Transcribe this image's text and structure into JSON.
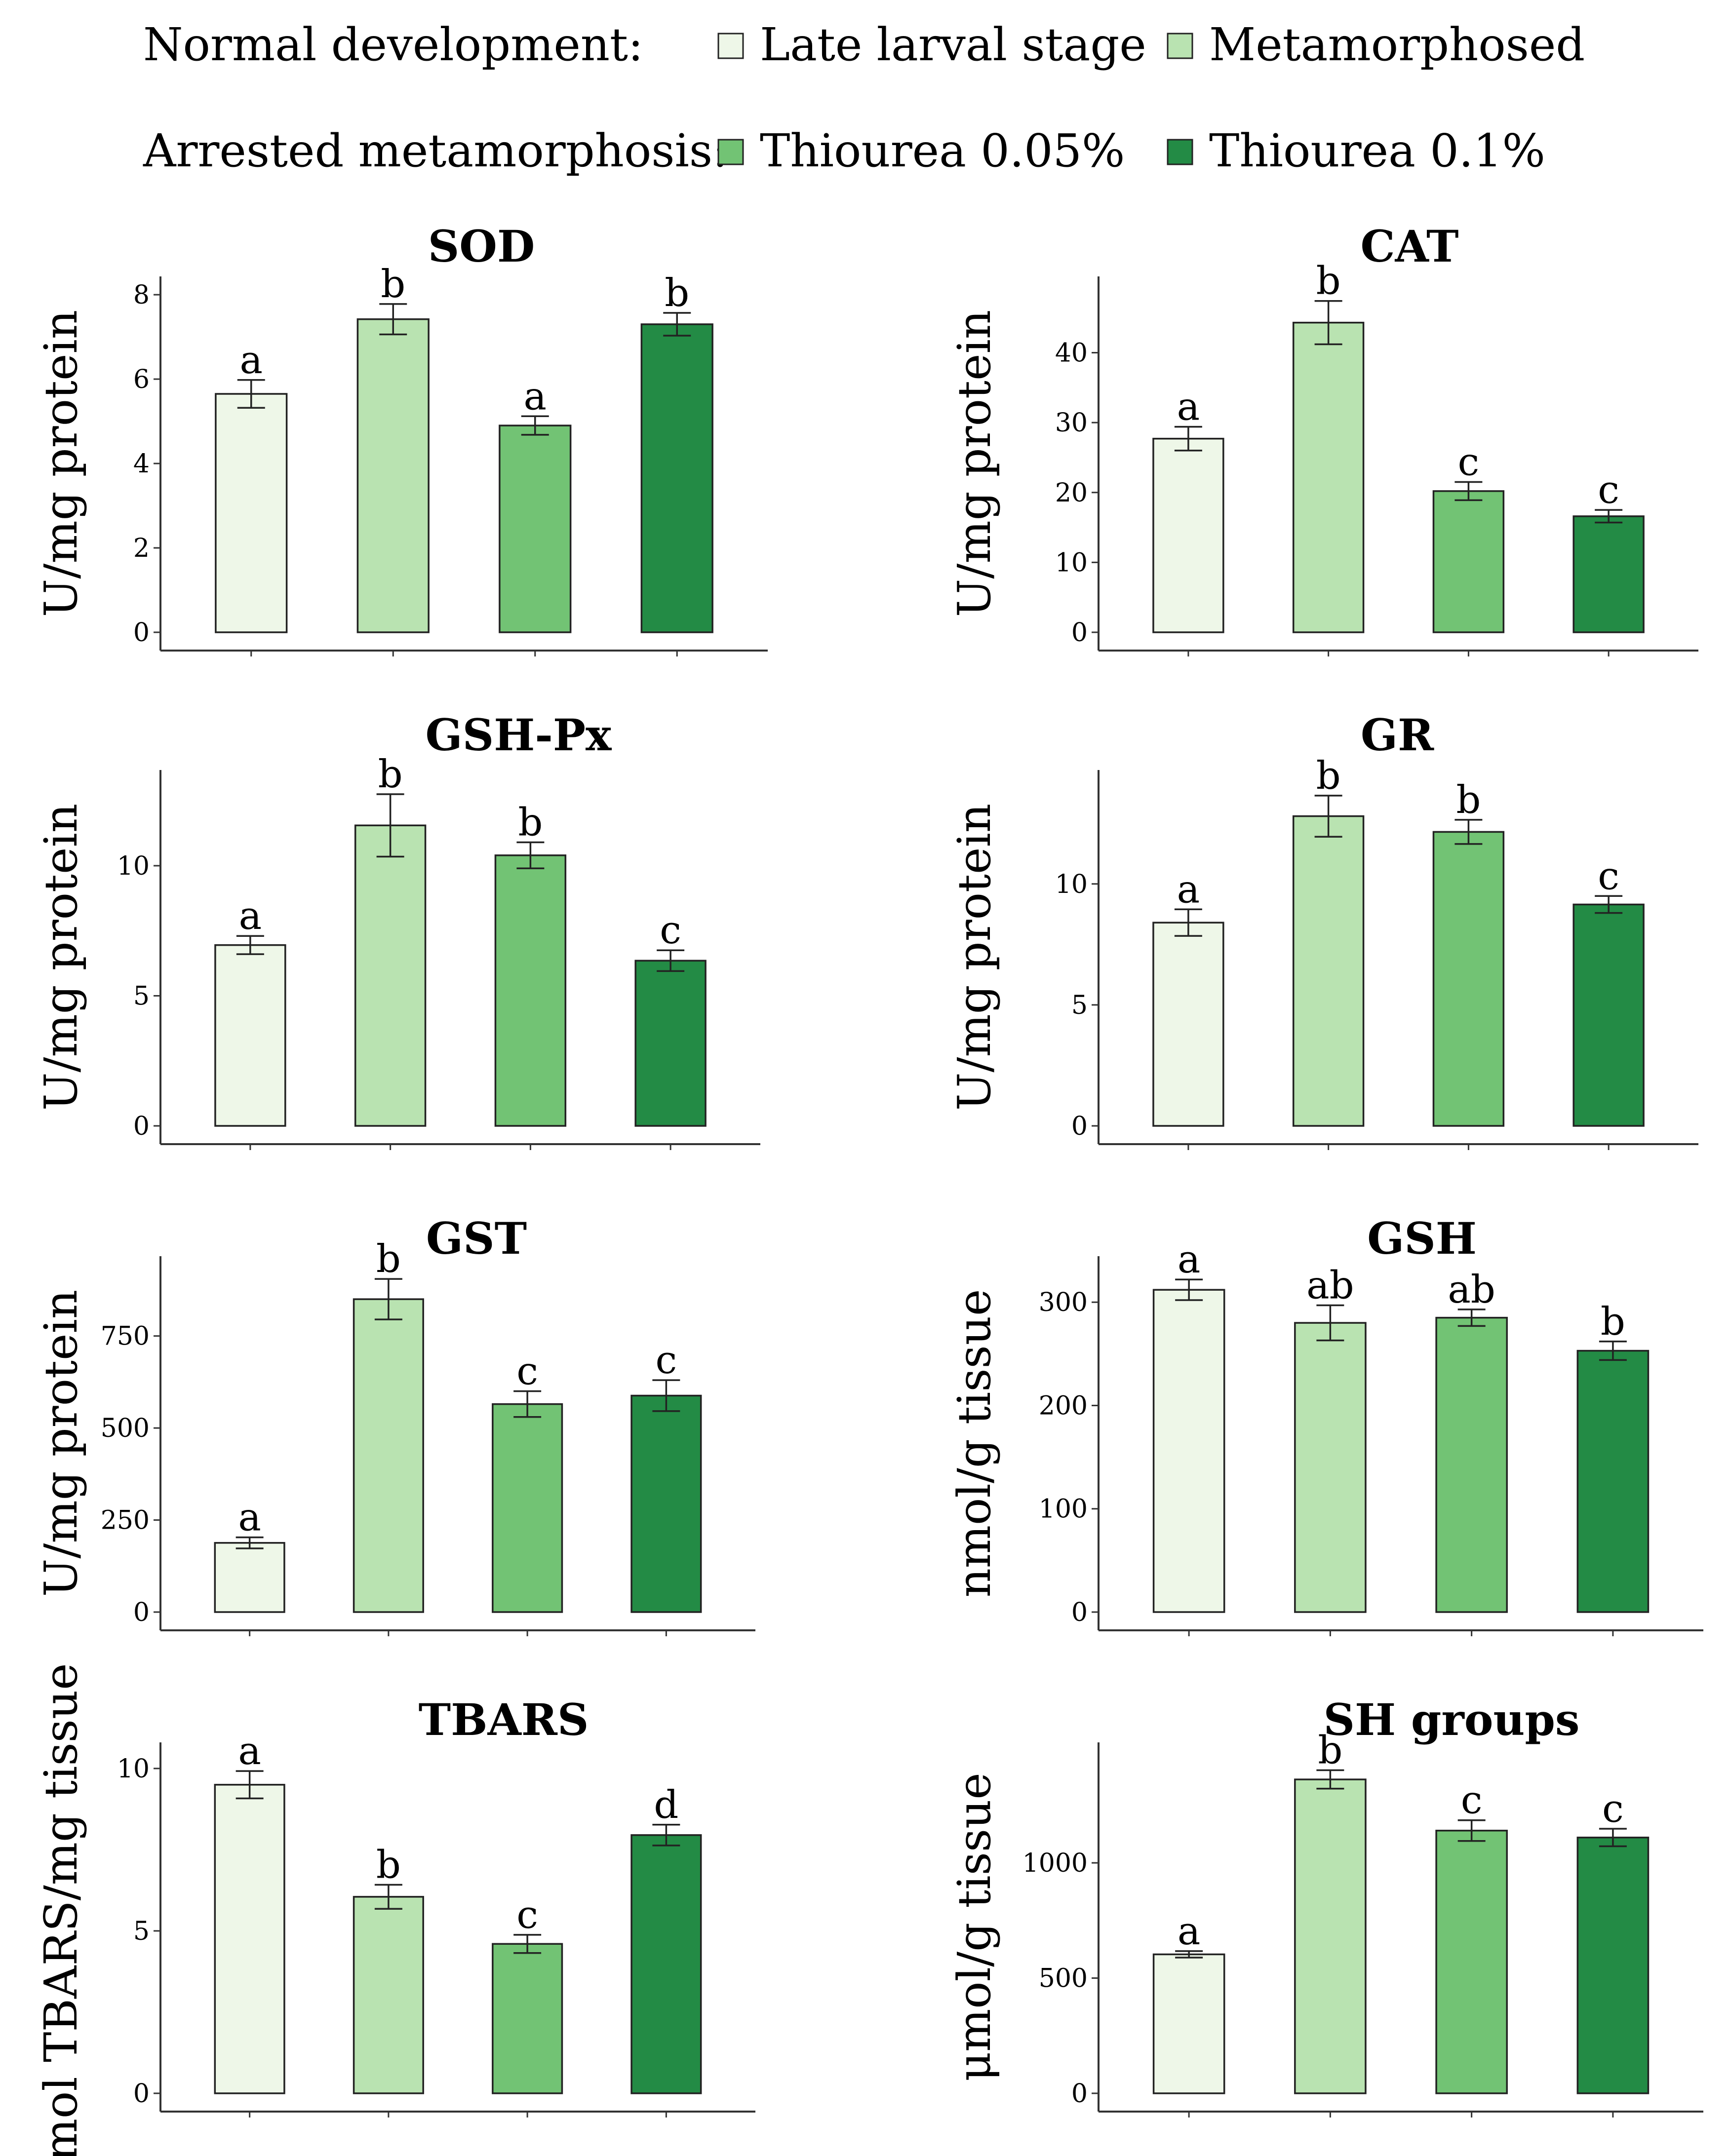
{
  "legend": {
    "rows": [
      {
        "label": "Normal development:",
        "items": [
          {
            "label": "Late larval stage",
            "color": "#eef7e8"
          },
          {
            "label": "Metamorphosed",
            "color": "#b9e3b1"
          }
        ]
      },
      {
        "label": "Arrested metamorphosis:",
        "items": [
          {
            "label": "Thiourea 0.05%",
            "color": "#72c374"
          },
          {
            "label": "Thiourea 0.1%",
            "color": "#238b45"
          }
        ]
      }
    ]
  },
  "chart_data": [
    {
      "type": "bar",
      "title": "SOD",
      "ylabel": "U/mg protein",
      "ylim": [
        0,
        8.2
      ],
      "yticks": [
        0,
        2,
        4,
        6,
        8
      ],
      "tick_labels": [
        "0",
        "2",
        "4",
        "6",
        "8"
      ],
      "groups": [
        "Late larval stage",
        "Metamorphosed",
        "Thiourea 0.05%",
        "Thiourea 0.1%"
      ],
      "values": [
        5.65,
        7.42,
        4.9,
        7.3
      ],
      "errors": [
        0.33,
        0.36,
        0.22,
        0.27
      ],
      "letters": [
        "a",
        "b",
        "a",
        "b"
      ]
    },
    {
      "type": "bar",
      "title": "CAT",
      "ylabel": "U/mg protein",
      "ylim": [
        0,
        49.5
      ],
      "yticks": [
        0,
        10,
        20,
        30,
        40
      ],
      "tick_labels": [
        "0",
        "10",
        "20",
        "30",
        "40"
      ],
      "groups": [
        "Late larval stage",
        "Metamorphosed",
        "Thiourea 0.05%",
        "Thiourea 0.1%"
      ],
      "values": [
        27.7,
        44.3,
        20.2,
        16.6
      ],
      "errors": [
        1.7,
        3.1,
        1.3,
        0.9
      ],
      "letters": [
        "a",
        "b",
        "c",
        "c"
      ]
    },
    {
      "type": "bar",
      "title": "GSH-Px",
      "ylabel": "U/mg protein",
      "ylim": [
        0,
        13.3
      ],
      "yticks": [
        0,
        5,
        10
      ],
      "tick_labels": [
        "0",
        "5",
        "10"
      ],
      "groups": [
        "Late larval stage",
        "Metamorphosed",
        "Thiourea 0.05%",
        "Thiourea 0.1%"
      ],
      "values": [
        6.95,
        11.55,
        10.4,
        6.35
      ],
      "errors": [
        0.35,
        1.2,
        0.5,
        0.4
      ],
      "letters": [
        "a",
        "b",
        "b",
        "c"
      ]
    },
    {
      "type": "bar",
      "title": "GR",
      "ylabel": "U/mg protein",
      "ylim": [
        0,
        14.3
      ],
      "yticks": [
        0,
        5,
        10
      ],
      "tick_labels": [
        "0",
        "5",
        "10"
      ],
      "groups": [
        "Late larval stage",
        "Metamorphosed",
        "Thiourea 0.05%",
        "Thiourea 0.1%"
      ],
      "values": [
        8.4,
        12.8,
        12.15,
        9.15
      ],
      "errors": [
        0.55,
        0.85,
        0.5,
        0.35
      ],
      "letters": [
        "a",
        "b",
        "b",
        "c"
      ]
    },
    {
      "type": "bar",
      "title": "GST",
      "ylabel": "U/mg protein",
      "ylim": [
        0,
        940
      ],
      "yticks": [
        0,
        250,
        500,
        750
      ],
      "tick_labels": [
        "0",
        "250",
        "500",
        "750"
      ],
      "groups": [
        "Late larval stage",
        "Metamorphosed",
        "Thiourea 0.05%",
        "Thiourea 0.1%"
      ],
      "values": [
        188,
        850,
        565,
        588
      ],
      "errors": [
        15,
        55,
        35,
        42
      ],
      "letters": [
        "a",
        "b",
        "c",
        "c"
      ]
    },
    {
      "type": "bar",
      "title": "GSH",
      "ylabel": "nmol/g tissue",
      "ylim": [
        0,
        335
      ],
      "yticks": [
        0,
        100,
        200,
        300
      ],
      "tick_labels": [
        "0",
        "100",
        "200",
        "300"
      ],
      "groups": [
        "Late larval stage",
        "Metamorphosed",
        "Thiourea 0.05%",
        "Thiourea 0.1%"
      ],
      "values": [
        312,
        280,
        285,
        253
      ],
      "errors": [
        10,
        17,
        8,
        9
      ],
      "letters": [
        "a",
        "ab",
        "ab",
        "b"
      ]
    },
    {
      "type": "bar",
      "title": "TBARS",
      "ylabel": "nmol TBARS/mg tissue",
      "ylim": [
        0,
        10.5
      ],
      "yticks": [
        0,
        5,
        10
      ],
      "tick_labels": [
        "0",
        "5",
        "10"
      ],
      "groups": [
        "Late larval stage",
        "Metamorphosed",
        "Thiourea 0.05%",
        "Thiourea 0.1%"
      ],
      "values": [
        9.5,
        6.05,
        4.6,
        7.95
      ],
      "errors": [
        0.42,
        0.37,
        0.28,
        0.32
      ],
      "letters": [
        "a",
        "b",
        "c",
        "d"
      ]
    },
    {
      "type": "bar",
      "title": "SH groups",
      "ylabel": "μmol/g tissue",
      "ylim": [
        0,
        1480
      ],
      "yticks": [
        0,
        500,
        1000
      ],
      "tick_labels": [
        "0",
        "500",
        "1000"
      ],
      "groups": [
        "Late larval stage",
        "Metamorphosed",
        "Thiourea 0.05%",
        "Thiourea 0.1%"
      ],
      "values": [
        603,
        1362,
        1140,
        1110
      ],
      "errors": [
        14,
        40,
        45,
        38
      ],
      "letters": [
        "a",
        "b",
        "c",
        "c"
      ]
    }
  ]
}
